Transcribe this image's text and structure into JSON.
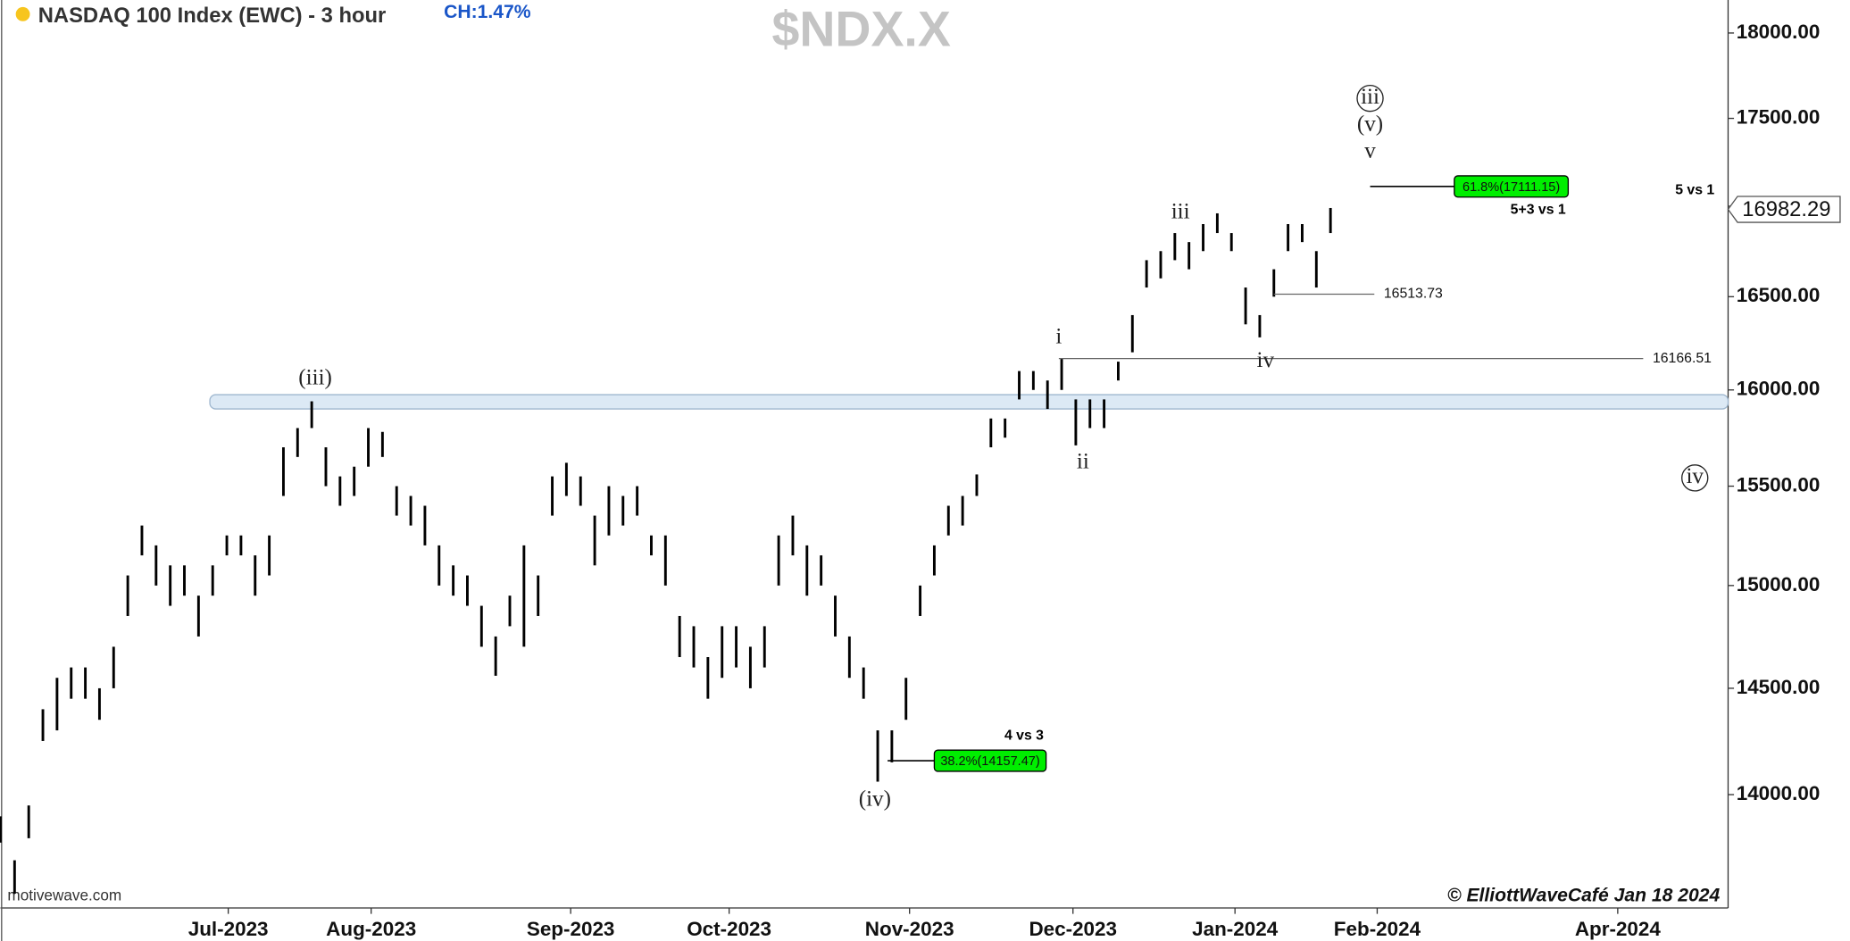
{
  "chart_data": {
    "type": "hl-bar",
    "title": "NASDAQ 100 Index (EWC) - 3 hour",
    "change": "CH:1.47%",
    "symbol": "$NDX.X",
    "source": "motivewave.com",
    "credit": "© ElliottWaveCafé Jan 18 2024",
    "color": "#000000",
    "log_scale": true,
    "x": [
      0,
      1,
      2,
      3,
      4,
      5,
      6,
      7,
      8,
      9,
      10,
      11,
      12,
      13,
      14,
      15,
      16,
      17,
      18,
      19,
      20,
      21,
      22,
      23,
      24,
      25,
      26,
      27,
      28,
      29,
      30,
      31,
      32,
      33,
      34,
      35,
      36,
      37,
      38,
      39,
      40,
      41,
      42,
      43,
      44,
      45,
      46,
      47,
      48,
      49,
      50,
      51,
      52,
      53,
      54,
      55,
      56,
      57,
      58,
      59,
      60,
      61,
      62,
      63,
      64,
      65,
      66,
      67,
      68,
      69,
      70,
      71,
      72,
      73,
      74,
      75,
      76,
      77,
      78,
      79,
      80,
      81,
      82,
      83,
      84,
      85,
      86,
      87,
      88,
      89,
      90,
      91,
      92,
      93,
      94
    ],
    "high": [
      13900,
      13700,
      13950,
      14400,
      14550,
      14600,
      14600,
      14500,
      14700,
      15050,
      15300,
      15200,
      15100,
      15100,
      14950,
      15100,
      15250,
      15250,
      15150,
      15250,
      15700,
      15800,
      15940,
      15700,
      15550,
      15600,
      15800,
      15780,
      15500,
      15450,
      15400,
      15200,
      15100,
      15050,
      14900,
      14750,
      14950,
      15200,
      15050,
      15550,
      15620,
      15550,
      15350,
      15500,
      15450,
      15500,
      15250,
      15250,
      14850,
      14800,
      14650,
      14800,
      14800,
      14700,
      14800,
      15250,
      15350,
      15200,
      15150,
      14950,
      14750,
      14600,
      14300,
      14300,
      14550,
      15000,
      15200,
      15400,
      15450,
      15560,
      15850,
      15850,
      16100,
      16100,
      16050,
      16166,
      15950,
      15950,
      15950,
      16150,
      16400,
      16700,
      16750,
      16850,
      16800,
      16900,
      16960,
      16850,
      16550,
      16400,
      16650,
      16900,
      16900,
      16750,
      16990
    ],
    "low": [
      13780,
      13550,
      13800,
      14250,
      14300,
      14450,
      14450,
      14350,
      14500,
      14850,
      15150,
      15000,
      14900,
      14950,
      14750,
      14950,
      15150,
      15150,
      14950,
      15050,
      15450,
      15650,
      15800,
      15500,
      15400,
      15450,
      15600,
      15650,
      15350,
      15300,
      15200,
      15000,
      14950,
      14900,
      14700,
      14560,
      14800,
      14700,
      14850,
      15350,
      15450,
      15400,
      15100,
      15250,
      15300,
      15350,
      15150,
      15000,
      14650,
      14600,
      14450,
      14550,
      14600,
      14500,
      14600,
      15000,
      15150,
      14950,
      15000,
      14750,
      14550,
      14450,
      14060,
      14150,
      14350,
      14850,
      15050,
      15250,
      15300,
      15450,
      15700,
      15750,
      15950,
      16000,
      15900,
      16000,
      15710,
      15800,
      15800,
      16050,
      16200,
      16550,
      16600,
      16700,
      16650,
      16750,
      16850,
      16750,
      16350,
      16280,
      16500,
      16750,
      16800,
      16550,
      16850
    ],
    "xlim": [
      0,
      122.1
    ],
    "xticks": [
      {
        "value": 16.1,
        "label": "Jul-2023"
      },
      {
        "value": 26.2,
        "label": "Aug-2023"
      },
      {
        "value": 40.3,
        "label": "Sep-2023"
      },
      {
        "value": 51.5,
        "label": "Oct-2023"
      },
      {
        "value": 64.25,
        "label": "Nov-2023"
      },
      {
        "value": 75.8,
        "label": "Dec-2023"
      },
      {
        "value": 87.25,
        "label": "Jan-2024"
      },
      {
        "value": 97.3,
        "label": "Feb-2024"
      },
      {
        "value": 114.3,
        "label": "Apr-2024"
      }
    ],
    "ylim": [
      13486,
      18197
    ],
    "yticks": [
      {
        "value": 14000,
        "label": "14000.00"
      },
      {
        "value": 14500,
        "label": "14500.00"
      },
      {
        "value": 15000,
        "label": "15000.00"
      },
      {
        "value": 15500,
        "label": "15500.00"
      },
      {
        "value": 16000,
        "label": "16000.00"
      },
      {
        "value": 16500,
        "label": "16500.00"
      },
      {
        "value": 17000,
        "label": "17000.00"
      },
      {
        "value": 17500,
        "label": "17500.00"
      },
      {
        "value": 18000,
        "label": "18000.00"
      }
    ],
    "last_price": 16982.29,
    "zone": {
      "x": 14.8,
      "range": [
        15900,
        15975
      ],
      "color": "#dce9f5"
    },
    "levels": [
      {
        "value": 16513.73,
        "x": [
          90,
          97.1
        ]
      },
      {
        "value": 16166.51,
        "x": [
          74.8,
          116.1
        ]
      }
    ],
    "targets": [
      {
        "label": "61.8%(17111.15)",
        "value": 17111.15,
        "x": [
          96.8,
          102.75,
          110.8
        ],
        "note": "5+3 vs 1",
        "color": "#00ee00"
      },
      {
        "label": "38.2%(14157.47)",
        "value": 14157.47,
        "x": [
          62.7,
          66,
          73.9
        ],
        "note": "4 vs 3",
        "color": "#00ee00"
      }
    ],
    "annotations": [
      {
        "text": "(iii)",
        "x": 22.25,
        "y": 16056
      },
      {
        "text": "(iv)",
        "x": 61.8,
        "y": 13973
      },
      {
        "text": "i",
        "x": 74.8,
        "y": 16276
      },
      {
        "text": "ii",
        "x": 76.5,
        "y": 15619
      },
      {
        "text": "iii",
        "x": 83.4,
        "y": 16960
      },
      {
        "text": "iv",
        "x": 89.4,
        "y": 16150
      },
      {
        "text": "v",
        "x": 96.8,
        "y": 17304
      },
      {
        "text": "(v)",
        "x": 96.8,
        "y": 17459
      },
      {
        "text": "iii",
        "x": 96.8,
        "y": 17616,
        "circled": true
      },
      {
        "text": "iv",
        "x": 119.75,
        "y": 15542,
        "circled": true
      },
      {
        "text": "5 vs 1",
        "x": 119.75,
        "y": 17088,
        "bold": true
      }
    ]
  }
}
